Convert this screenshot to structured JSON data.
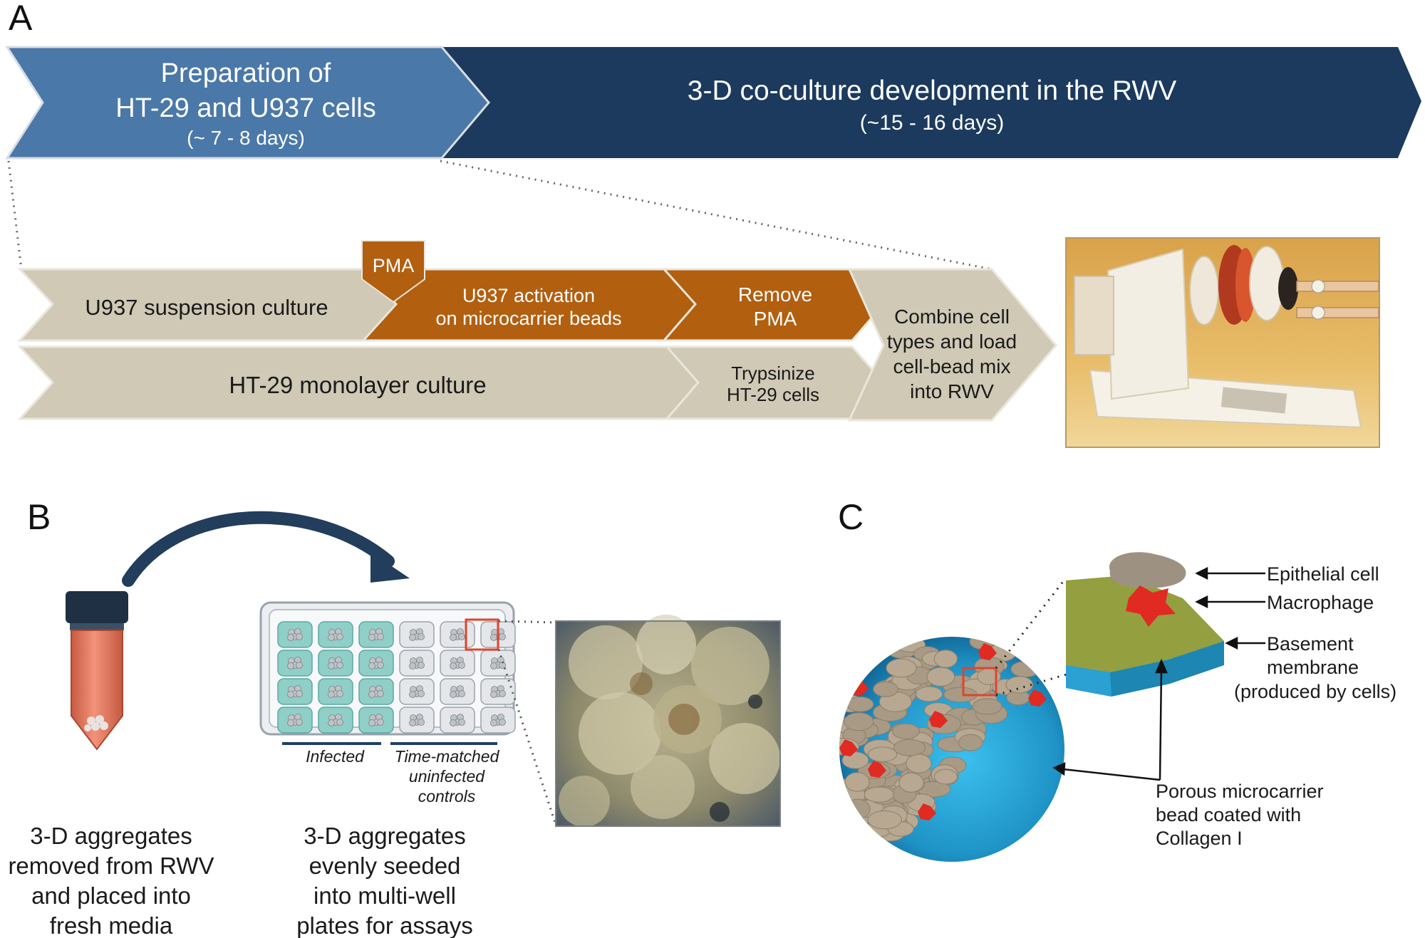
{
  "panels": {
    "a": "A",
    "b": "B",
    "c": "C"
  },
  "timeline": {
    "prep_title_1": "Preparation of",
    "prep_title_2": "HT-29 and U937 cells",
    "prep_duration": "(~ 7 - 8 days)",
    "rwv_title": "3-D co-culture development in the RWV",
    "rwv_duration": "(~15 - 16 days)"
  },
  "steps": {
    "u937_suspension": "U937 suspension culture",
    "pma_tag": "PMA",
    "u937_activation_1": "U937 activation",
    "u937_activation_2": "on microcarrier beads",
    "remove_pma_1": "Remove",
    "remove_pma_2": "PMA",
    "ht29_monolayer": "HT-29 monolayer culture",
    "trypsinize_1": "Trypsinize",
    "trypsinize_2": "HT-29 cells",
    "combine_1": "Combine cell",
    "combine_2": "types and load",
    "combine_3": "cell-bead mix",
    "combine_4": "into RWV"
  },
  "panel_b": {
    "infected": "Infected",
    "controls_1": "Time-matched",
    "controls_2": "uninfected",
    "controls_3": "controls",
    "caption_left": [
      "3-D aggregates",
      "removed from RWV",
      "and placed into",
      "fresh media"
    ],
    "caption_right": [
      "3-D aggregates",
      "evenly seeded",
      "into multi-well",
      "plates for assays"
    ]
  },
  "panel_c": {
    "epithelial": "Epithelial cell",
    "macrophage": "Macrophage",
    "basement_1": "Basement",
    "basement_2": "membrane",
    "basement_3": "(produced by cells)",
    "bead_1": "Porous microcarrier",
    "bead_2": "bead coated with",
    "bead_3": "Collagen I"
  },
  "colors": {
    "prep_blue": "#4a78a8",
    "rwv_navy": "#1b3a5e",
    "step_beige": "#cfc9b5",
    "step_orange": "#b25f10",
    "tube_orange": "#e88062",
    "bead_blue": "#2a9fd0",
    "cell_tan": "#b8a892",
    "macrophage_red": "#e02a22"
  }
}
